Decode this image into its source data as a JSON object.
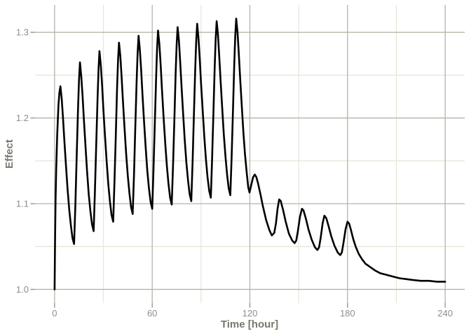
{
  "colors": {
    "background": "#ffffff",
    "grid_major": "#b4b4aa",
    "grid_minor": "#e8e6da",
    "tick_mark": "#8d8d88",
    "tick_label": "#8e8e88",
    "axis_title": "#79786f",
    "line": "#000000"
  },
  "chart_data": {
    "type": "line",
    "title": "",
    "xlabel": "Time [hour]",
    "ylabel": "Effect",
    "xlim": [
      -12,
      252
    ],
    "ylim": [
      0.984,
      1.332
    ],
    "grid": "major+minor",
    "legend": "none",
    "x_ticks": {
      "major": [
        0,
        60,
        120,
        180,
        240
      ],
      "labels": [
        "0",
        "60",
        "120",
        "180",
        "240"
      ],
      "minor": [
        30,
        90,
        150,
        210
      ]
    },
    "y_ticks": {
      "major": [
        1.0,
        1.1,
        1.2,
        1.3
      ],
      "labels": [
        "1.0",
        "1.1",
        "1.2",
        "1.3"
      ],
      "minor": [
        1.05,
        1.15,
        1.25
      ]
    },
    "series": [
      {
        "name": "Effect",
        "color": "#000000",
        "stroke_width": 2.6,
        "points": [
          [
            0,
            1.0
          ],
          [
            0.3,
            1.06
          ],
          [
            0.6,
            1.105
          ],
          [
            1,
            1.14
          ],
          [
            1.6,
            1.18
          ],
          [
            2.4,
            1.215
          ],
          [
            3,
            1.23
          ],
          [
            3.6,
            1.237
          ],
          [
            4.4,
            1.222
          ],
          [
            5.2,
            1.2
          ],
          [
            6,
            1.174
          ],
          [
            7,
            1.145
          ],
          [
            8,
            1.117
          ],
          [
            9,
            1.093
          ],
          [
            10,
            1.075
          ],
          [
            11,
            1.06
          ],
          [
            12,
            1.053
          ],
          [
            12.8,
            1.1
          ],
          [
            13.6,
            1.155
          ],
          [
            14.4,
            1.21
          ],
          [
            15,
            1.244
          ],
          [
            15.6,
            1.265
          ],
          [
            16.4,
            1.249
          ],
          [
            17.2,
            1.226
          ],
          [
            18,
            1.198
          ],
          [
            19,
            1.167
          ],
          [
            20,
            1.137
          ],
          [
            21,
            1.111
          ],
          [
            22,
            1.092
          ],
          [
            23,
            1.076
          ],
          [
            24,
            1.068
          ],
          [
            24.8,
            1.114
          ],
          [
            25.6,
            1.169
          ],
          [
            26.4,
            1.223
          ],
          [
            27,
            1.257
          ],
          [
            27.6,
            1.278
          ],
          [
            28.4,
            1.262
          ],
          [
            29.2,
            1.238
          ],
          [
            30,
            1.21
          ],
          [
            31,
            1.179
          ],
          [
            32,
            1.149
          ],
          [
            33,
            1.123
          ],
          [
            34,
            1.103
          ],
          [
            35,
            1.087
          ],
          [
            36,
            1.079
          ],
          [
            36.8,
            1.125
          ],
          [
            37.6,
            1.179
          ],
          [
            38.4,
            1.234
          ],
          [
            39,
            1.267
          ],
          [
            39.6,
            1.288
          ],
          [
            40.4,
            1.272
          ],
          [
            41.2,
            1.248
          ],
          [
            42,
            1.22
          ],
          [
            43,
            1.188
          ],
          [
            44,
            1.158
          ],
          [
            45,
            1.132
          ],
          [
            46,
            1.112
          ],
          [
            47,
            1.096
          ],
          [
            48,
            1.088
          ],
          [
            48.8,
            1.134
          ],
          [
            49.6,
            1.188
          ],
          [
            50.4,
            1.242
          ],
          [
            51,
            1.275
          ],
          [
            51.6,
            1.296
          ],
          [
            52.4,
            1.28
          ],
          [
            53.2,
            1.256
          ],
          [
            54,
            1.227
          ],
          [
            55,
            1.195
          ],
          [
            56,
            1.165
          ],
          [
            57,
            1.138
          ],
          [
            58,
            1.118
          ],
          [
            59,
            1.102
          ],
          [
            60,
            1.094
          ],
          [
            60.8,
            1.14
          ],
          [
            61.6,
            1.194
          ],
          [
            62.4,
            1.248
          ],
          [
            63,
            1.281
          ],
          [
            63.6,
            1.302
          ],
          [
            64.4,
            1.286
          ],
          [
            65.2,
            1.261
          ],
          [
            66,
            1.233
          ],
          [
            67,
            1.201
          ],
          [
            68,
            1.17
          ],
          [
            69,
            1.144
          ],
          [
            70,
            1.123
          ],
          [
            71,
            1.107
          ],
          [
            72,
            1.099
          ],
          [
            72.8,
            1.145
          ],
          [
            73.6,
            1.198
          ],
          [
            74.4,
            1.252
          ],
          [
            75,
            1.285
          ],
          [
            75.6,
            1.306
          ],
          [
            76.4,
            1.29
          ],
          [
            77.2,
            1.265
          ],
          [
            78,
            1.237
          ],
          [
            79,
            1.205
          ],
          [
            80,
            1.174
          ],
          [
            81,
            1.148
          ],
          [
            82,
            1.127
          ],
          [
            83,
            1.111
          ],
          [
            84,
            1.103
          ],
          [
            84.8,
            1.149
          ],
          [
            85.6,
            1.202
          ],
          [
            86.4,
            1.256
          ],
          [
            87,
            1.289
          ],
          [
            87.6,
            1.31
          ],
          [
            88.4,
            1.294
          ],
          [
            89.2,
            1.269
          ],
          [
            90,
            1.241
          ],
          [
            91,
            1.209
          ],
          [
            92,
            1.178
          ],
          [
            93,
            1.152
          ],
          [
            94,
            1.131
          ],
          [
            95,
            1.115
          ],
          [
            96,
            1.107
          ],
          [
            96.8,
            1.152
          ],
          [
            97.6,
            1.206
          ],
          [
            98.4,
            1.259
          ],
          [
            99,
            1.292
          ],
          [
            99.6,
            1.313
          ],
          [
            100.4,
            1.297
          ],
          [
            101.2,
            1.272
          ],
          [
            102,
            1.244
          ],
          [
            103,
            1.212
          ],
          [
            104,
            1.181
          ],
          [
            105,
            1.155
          ],
          [
            106,
            1.134
          ],
          [
            107,
            1.118
          ],
          [
            108,
            1.11
          ],
          [
            108.8,
            1.155
          ],
          [
            109.6,
            1.209
          ],
          [
            110.4,
            1.262
          ],
          [
            111,
            1.295
          ],
          [
            111.6,
            1.316
          ],
          [
            112.4,
            1.3
          ],
          [
            113.2,
            1.275
          ],
          [
            114,
            1.247
          ],
          [
            115,
            1.215
          ],
          [
            116,
            1.184
          ],
          [
            117,
            1.158
          ],
          [
            118,
            1.137
          ],
          [
            119,
            1.119
          ],
          [
            119.8,
            1.113
          ],
          [
            121,
            1.123
          ],
          [
            122,
            1.131
          ],
          [
            123,
            1.134
          ],
          [
            124,
            1.131
          ],
          [
            125,
            1.124
          ],
          [
            126.5,
            1.111
          ],
          [
            128,
            1.097
          ],
          [
            130,
            1.081
          ],
          [
            132,
            1.069
          ],
          [
            133.5,
            1.063
          ],
          [
            135,
            1.066
          ],
          [
            136,
            1.077
          ],
          [
            137,
            1.094
          ],
          [
            138,
            1.105
          ],
          [
            139,
            1.103
          ],
          [
            140.5,
            1.092
          ],
          [
            142,
            1.079
          ],
          [
            144,
            1.065
          ],
          [
            146,
            1.057
          ],
          [
            147.5,
            1.054
          ],
          [
            148.5,
            1.057
          ],
          [
            149.5,
            1.068
          ],
          [
            150.8,
            1.085
          ],
          [
            152,
            1.094
          ],
          [
            153,
            1.092
          ],
          [
            154.5,
            1.082
          ],
          [
            156,
            1.07
          ],
          [
            158,
            1.058
          ],
          [
            160,
            1.049
          ],
          [
            161.5,
            1.046
          ],
          [
            162.5,
            1.049
          ],
          [
            163.5,
            1.06
          ],
          [
            164.7,
            1.077
          ],
          [
            165.8,
            1.086
          ],
          [
            167,
            1.083
          ],
          [
            168.5,
            1.073
          ],
          [
            170,
            1.062
          ],
          [
            172,
            1.051
          ],
          [
            174,
            1.043
          ],
          [
            175.5,
            1.04
          ],
          [
            176.5,
            1.043
          ],
          [
            177.5,
            1.054
          ],
          [
            178.8,
            1.07
          ],
          [
            180,
            1.079
          ],
          [
            181,
            1.077
          ],
          [
            182,
            1.07
          ],
          [
            183.5,
            1.059
          ],
          [
            185,
            1.05
          ],
          [
            187,
            1.041
          ],
          [
            189,
            1.035
          ],
          [
            191,
            1.03
          ],
          [
            194,
            1.026
          ],
          [
            197,
            1.022
          ],
          [
            200,
            1.019
          ],
          [
            204,
            1.017
          ],
          [
            208,
            1.015
          ],
          [
            212,
            1.013
          ],
          [
            216,
            1.012
          ],
          [
            220,
            1.011
          ],
          [
            225,
            1.01
          ],
          [
            230,
            1.01
          ],
          [
            235,
            1.009
          ],
          [
            240,
            1.009
          ]
        ]
      }
    ]
  }
}
